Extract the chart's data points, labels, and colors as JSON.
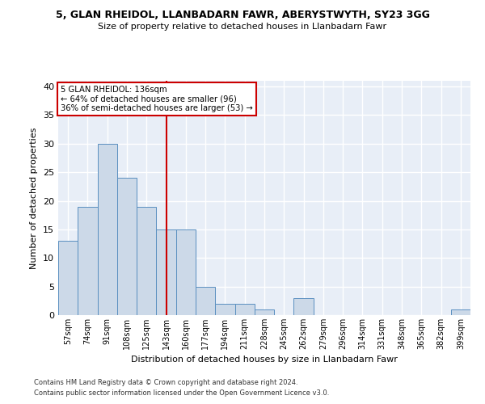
{
  "title1": "5, GLAN RHEIDOL, LLANBADARN FAWR, ABERYSTWYTH, SY23 3GG",
  "title2": "Size of property relative to detached houses in Llanbadarn Fawr",
  "xlabel": "Distribution of detached houses by size in Llanbadarn Fawr",
  "ylabel": "Number of detached properties",
  "categories": [
    "57sqm",
    "74sqm",
    "91sqm",
    "108sqm",
    "125sqm",
    "143sqm",
    "160sqm",
    "177sqm",
    "194sqm",
    "211sqm",
    "228sqm",
    "245sqm",
    "262sqm",
    "279sqm",
    "296sqm",
    "314sqm",
    "331sqm",
    "348sqm",
    "365sqm",
    "382sqm",
    "399sqm"
  ],
  "values": [
    13,
    19,
    30,
    24,
    19,
    15,
    15,
    5,
    2,
    2,
    1,
    0,
    3,
    0,
    0,
    0,
    0,
    0,
    0,
    0,
    1
  ],
  "bar_color": "#ccd9e8",
  "bar_edge_color": "#5a8fc0",
  "vline_x": 5.0,
  "vline_color": "#cc0000",
  "annotation_text": "5 GLAN RHEIDOL: 136sqm\n← 64% of detached houses are smaller (96)\n36% of semi-detached houses are larger (53) →",
  "annotation_box_color": "#cc0000",
  "ylim": [
    0,
    41
  ],
  "yticks": [
    0,
    5,
    10,
    15,
    20,
    25,
    30,
    35,
    40
  ],
  "footer1": "Contains HM Land Registry data © Crown copyright and database right 2024.",
  "footer2": "Contains public sector information licensed under the Open Government Licence v3.0.",
  "background_color": "#e8eef7",
  "grid_color": "#ffffff"
}
